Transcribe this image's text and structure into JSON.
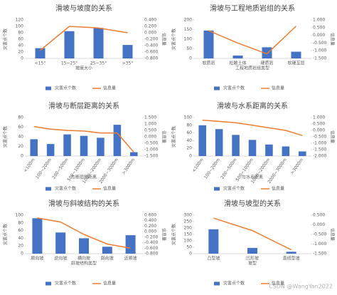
{
  "chart_data": [
    {
      "type": "bar",
      "title": "滑坡与坡度的关系",
      "x_label": "坡度大小",
      "y_label": "灾害点个数",
      "y2_label": "信息量",
      "categories": [
        "<15°",
        "15~25°",
        "25~35°",
        ">35°"
      ],
      "series": [
        {
          "name": "灾害点个数",
          "color": "#4472c4",
          "values": [
            32,
            85,
            95,
            42
          ]
        },
        {
          "name": "信息量",
          "color": "#ed7d31",
          "type": "line",
          "axis": "y2",
          "values": [
            -0.55,
            0.2,
            0.15,
            0.0
          ]
        }
      ],
      "ylim": [
        0,
        120
      ],
      "yticks": [
        0,
        20,
        40,
        60,
        80,
        100,
        120
      ],
      "y2lim": [
        -0.8,
        0.4
      ],
      "y2ticks": [
        {
          "value": 0.4,
          "label": "0.400"
        },
        {
          "value": 0.2,
          "label": "0.200"
        },
        {
          "value": 0,
          "label": "0.000"
        },
        {
          "value": -0.2,
          "label": "-0.200"
        },
        {
          "value": -0.4,
          "label": "-0.400"
        },
        {
          "value": -0.6,
          "label": "-0.600"
        },
        {
          "value": -0.8,
          "label": "-0.800"
        }
      ]
    },
    {
      "type": "bar",
      "title": "滑坡与工程地质岩组的关系",
      "x_label": "工程地质岩组类型",
      "y_label": "灾害点个数",
      "y2_label": "信息量",
      "categories": [
        "软质岩",
        "松散土体",
        "硬质岩",
        "软硬互层"
      ],
      "series": [
        {
          "name": "灾害点个数",
          "color": "#4472c4",
          "values": [
            145,
            15,
            58,
            35
          ]
        },
        {
          "name": "信息量",
          "color": "#ed7d31",
          "type": "line",
          "axis": "y2",
          "values": [
            0.3,
            -0.5,
            -1.2,
            0.6
          ]
        }
      ],
      "ylim": [
        0,
        200
      ],
      "yticks": [
        0,
        50,
        100,
        150,
        200
      ],
      "y2lim": [
        -1.5,
        1.0
      ],
      "y2ticks": [
        {
          "value": 1.0,
          "label": "1.000"
        },
        {
          "value": 0.5,
          "label": "0.500"
        },
        {
          "value": 0,
          "label": "0.000"
        },
        {
          "value": -0.5,
          "label": "-0.500"
        },
        {
          "value": -1.0,
          "label": "-1.000"
        },
        {
          "value": -1.5,
          "label": "-1.500"
        }
      ]
    },
    {
      "type": "bar",
      "title": "滑坡与断层距离的关系",
      "x_label": "与断层的距离",
      "y_label": "灾害点个数",
      "y2_label": "信息量",
      "categories": [
        "<100m",
        "100~200m",
        "200~500m",
        "500~1000m",
        "1000~2000m",
        "2000~3000m",
        ">3000m"
      ],
      "series": [
        {
          "name": "灾害点个数",
          "color": "#4472c4",
          "values": [
            35,
            25,
            45,
            42,
            38,
            65,
            8
          ]
        },
        {
          "name": "信息量",
          "color": "#ed7d31",
          "type": "line",
          "axis": "y2",
          "values": [
            0.8,
            0.6,
            0.5,
            0.45,
            0.3,
            0.3,
            -1.2
          ]
        }
      ],
      "ylim": [
        0,
        80
      ],
      "yticks": [
        0,
        20,
        40,
        60,
        80
      ],
      "y2lim": [
        -1.5,
        1.5
      ],
      "y2ticks": [
        {
          "value": 1.5,
          "label": "1.500"
        },
        {
          "value": 1.0,
          "label": "1.000"
        },
        {
          "value": 0.5,
          "label": "0.500"
        },
        {
          "value": 0,
          "label": "0.000"
        },
        {
          "value": -0.5,
          "label": "-0.500"
        },
        {
          "value": -1.0,
          "label": "-1.000"
        },
        {
          "value": -1.5,
          "label": "-1.500"
        }
      ]
    },
    {
      "type": "bar",
      "title": "滑坡与水系距离的关系",
      "x_label": "与水系距离",
      "y_label": "灾害点个数",
      "y2_label": "信息量",
      "categories": [
        "<100m",
        "100~200m",
        "200~500m",
        "500~1000m",
        "1000~2000m",
        "2000~3000m",
        ">3000m"
      ],
      "series": [
        {
          "name": "灾害点个数",
          "color": "#4472c4",
          "values": [
            80,
            70,
            55,
            42,
            30,
            25,
            12
          ]
        },
        {
          "name": "信息量",
          "color": "#ed7d31",
          "type": "line",
          "axis": "y2",
          "values": [
            0.8,
            0.7,
            0.6,
            0.4,
            0.2,
            0.0,
            -0.4
          ]
        }
      ],
      "ylim": [
        0,
        100
      ],
      "yticks": [
        0,
        20,
        40,
        60,
        80,
        100
      ],
      "y2lim": [
        -2.0,
        1.0
      ],
      "y2ticks": [
        {
          "value": 1.0,
          "label": "1.000"
        },
        {
          "value": 0.5,
          "label": "0.500"
        },
        {
          "value": 0,
          "label": "0.000"
        },
        {
          "value": -0.5,
          "label": "-0.500"
        },
        {
          "value": -1.0,
          "label": "-1.000"
        },
        {
          "value": -1.5,
          "label": "-1.500"
        },
        {
          "value": -2.0,
          "label": "-2.000"
        }
      ]
    },
    {
      "type": "bar",
      "title": "滑坡与斜坡结构的关系",
      "x_label": "斜坡结构类型",
      "y_label": "灾害点个数",
      "y2_label": "信息量",
      "categories": [
        "顺向坡",
        "逆向坡",
        "横向坡",
        "斜向坡",
        "近顺坡"
      ],
      "series": [
        {
          "name": "灾害点个数",
          "color": "#4472c4",
          "values": [
            92,
            55,
            40,
            18,
            48
          ]
        },
        {
          "name": "信息量",
          "color": "#ed7d31",
          "type": "line",
          "axis": "y2",
          "values": [
            0.5,
            0.35,
            -0.1,
            -0.45,
            -0.6
          ]
        }
      ],
      "ylim": [
        0,
        100
      ],
      "yticks": [
        0,
        20,
        40,
        60,
        80,
        100
      ],
      "y2lim": [
        -0.8,
        0.6
      ],
      "y2ticks": [
        {
          "value": 0.6,
          "label": "0.600"
        },
        {
          "value": 0.4,
          "label": "0.400"
        },
        {
          "value": 0.2,
          "label": "0.200"
        },
        {
          "value": 0,
          "label": "0.000"
        },
        {
          "value": -0.2,
          "label": "-0.200"
        },
        {
          "value": -0.4,
          "label": "-0.400"
        },
        {
          "value": -0.6,
          "label": "-0.600"
        },
        {
          "value": -0.8,
          "label": "-0.800"
        }
      ]
    },
    {
      "type": "bar",
      "title": "滑坡与坡型的关系",
      "x_label": "坡型",
      "y_label": "灾害点个数",
      "y2_label": "信息量",
      "categories": [
        "凸型坡",
        "凹形坡",
        "直线型坡"
      ],
      "series": [
        {
          "name": "灾害点个数",
          "color": "#4472c4",
          "values": [
            190,
            45,
            15
          ]
        },
        {
          "name": "信息量",
          "color": "#ed7d31",
          "type": "line",
          "axis": "y2",
          "values": [
            0.35,
            -0.3,
            -1.3
          ]
        }
      ],
      "ylim": [
        0,
        300
      ],
      "yticks": [
        0,
        50,
        100,
        150,
        200,
        250,
        300
      ],
      "y2lim": [
        -1.5,
        0.5
      ],
      "y2ticks": [
        {
          "value": 0.5,
          "label": "0.500"
        },
        {
          "value": 0,
          "label": "0.000"
        },
        {
          "value": -0.5,
          "label": "-0.500"
        },
        {
          "value": -1.0,
          "label": "-1.000"
        },
        {
          "value": -1.5,
          "label": "-1.500"
        }
      ]
    }
  ],
  "watermark": "CSDN @WangYan2022"
}
